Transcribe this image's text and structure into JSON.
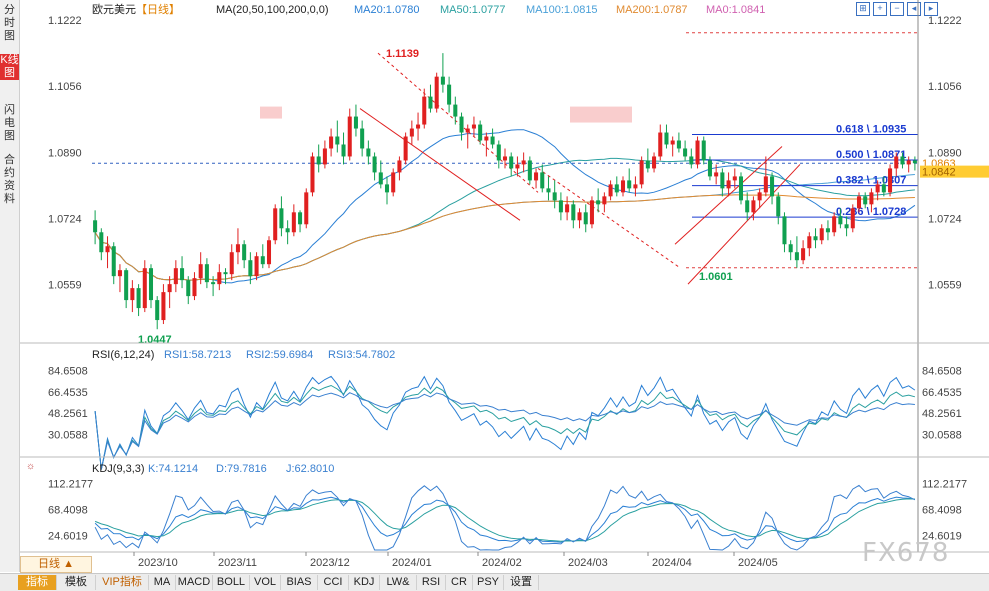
{
  "sidebar": {
    "tabs": [
      {
        "label": "分时图",
        "active": false
      },
      {
        "label": "K线图",
        "active": true
      },
      {
        "label": "闪电图",
        "active": false
      },
      {
        "label": "合约资料",
        "active": false
      }
    ]
  },
  "header": {
    "symbol": "欧元美元",
    "timeframe": "【日线】",
    "ma_params": "MA(20,50,100,200,0,0)",
    "ma_values": [
      {
        "label": "MA20:1.0780",
        "color": "#2a7fd4"
      },
      {
        "label": "MA50:1.0777",
        "color": "#2aa0a0"
      },
      {
        "label": "MA100:1.0815",
        "color": "#4aa0d8"
      },
      {
        "label": "MA200:1.0787",
        "color": "#e08a30"
      },
      {
        "label": "MA0:1.0841",
        "color": "#d060b0"
      }
    ]
  },
  "chart_data": [
    {
      "type": "candlestick",
      "title": "欧元美元 日线",
      "x_labels": [
        "2023/10",
        "2023/11",
        "2023/12",
        "2024/01",
        "2024/02",
        "2024/03",
        "2024/04",
        "2024/05"
      ],
      "y_ticks": [
        "1.1222",
        "1.1056",
        "1.0890",
        "1.0724",
        "1.0559"
      ],
      "ylim": [
        1.042,
        1.1222
      ],
      "current_price": "1.0863",
      "current_price_secondary": "1.0842",
      "annotations": {
        "high": "1.1139",
        "low_2023": "1.0447",
        "low_2024": "1.0601"
      },
      "fib_levels": [
        {
          "label": "0.618 \\ 1.0935",
          "value": 1.0935
        },
        {
          "label": "0.500 \\ 1.0871",
          "value": 1.0871
        },
        {
          "label": "0.382 \\ 1.0807",
          "value": 1.0807
        },
        {
          "label": "0.236 \\ 1.0728",
          "value": 1.0728
        }
      ],
      "candles": [
        [
          1.072,
          1.0745,
          1.066,
          1.069
        ],
        [
          1.069,
          1.07,
          1.062,
          1.064
        ],
        [
          1.064,
          1.068,
          1.06,
          1.0655
        ],
        [
          1.0655,
          1.0665,
          1.056,
          1.058
        ],
        [
          1.058,
          1.061,
          1.054,
          1.0595
        ],
        [
          1.0595,
          1.06,
          1.05,
          1.052
        ],
        [
          1.052,
          1.057,
          1.049,
          1.055
        ],
        [
          1.055,
          1.056,
          1.048,
          1.05
        ],
        [
          1.05,
          1.062,
          1.049,
          1.06
        ],
        [
          1.06,
          1.061,
          1.05,
          1.052
        ],
        [
          1.052,
          1.053,
          1.0447,
          1.047
        ],
        [
          1.047,
          1.056,
          1.046,
          1.054
        ],
        [
          1.054,
          1.058,
          1.05,
          1.056
        ],
        [
          1.056,
          1.062,
          1.054,
          1.06
        ],
        [
          1.06,
          1.063,
          1.055,
          1.057
        ],
        [
          1.057,
          1.058,
          1.051,
          1.053
        ],
        [
          1.053,
          1.059,
          1.052,
          1.0575
        ],
        [
          1.0575,
          1.064,
          1.056,
          1.061
        ],
        [
          1.061,
          1.0625,
          1.055,
          1.0565
        ],
        [
          1.0565,
          1.058,
          1.053,
          1.056
        ],
        [
          1.056,
          1.061,
          1.0545,
          1.059
        ],
        [
          1.059,
          1.06,
          1.056,
          1.0585
        ],
        [
          1.0585,
          1.066,
          1.057,
          1.064
        ],
        [
          1.064,
          1.07,
          1.061,
          1.066
        ],
        [
          1.066,
          1.067,
          1.06,
          1.062
        ],
        [
          1.062,
          1.064,
          1.056,
          1.058
        ],
        [
          1.058,
          1.064,
          1.057,
          1.063
        ],
        [
          1.063,
          1.066,
          1.06,
          1.061
        ],
        [
          1.061,
          1.068,
          1.06,
          1.067
        ],
        [
          1.067,
          1.076,
          1.066,
          1.075
        ],
        [
          1.075,
          1.078,
          1.068,
          1.07
        ],
        [
          1.07,
          1.072,
          1.066,
          1.069
        ],
        [
          1.069,
          1.076,
          1.068,
          1.074
        ],
        [
          1.074,
          1.0745,
          1.069,
          1.071
        ],
        [
          1.071,
          1.08,
          1.07,
          1.079
        ],
        [
          1.079,
          1.089,
          1.078,
          1.088
        ],
        [
          1.088,
          1.091,
          1.084,
          1.086
        ],
        [
          1.086,
          1.092,
          1.085,
          1.09
        ],
        [
          1.09,
          1.095,
          1.088,
          1.093
        ],
        [
          1.093,
          1.097,
          1.089,
          1.091
        ],
        [
          1.091,
          1.094,
          1.086,
          1.088
        ],
        [
          1.088,
          1.1,
          1.087,
          1.098
        ],
        [
          1.098,
          1.101,
          1.093,
          1.095
        ],
        [
          1.095,
          1.097,
          1.088,
          1.09
        ],
        [
          1.09,
          1.092,
          1.086,
          1.088
        ],
        [
          1.088,
          1.089,
          1.082,
          1.084
        ],
        [
          1.084,
          1.087,
          1.08,
          1.081
        ],
        [
          1.081,
          1.083,
          1.076,
          1.079
        ],
        [
          1.079,
          1.085,
          1.078,
          1.084
        ],
        [
          1.084,
          1.088,
          1.082,
          1.087
        ],
        [
          1.087,
          1.094,
          1.086,
          1.093
        ],
        [
          1.093,
          1.097,
          1.091,
          1.095
        ],
        [
          1.095,
          1.099,
          1.092,
          1.096
        ],
        [
          1.096,
          1.105,
          1.095,
          1.103
        ],
        [
          1.103,
          1.106,
          1.099,
          1.1
        ],
        [
          1.1,
          1.109,
          1.099,
          1.108
        ],
        [
          1.108,
          1.1139,
          1.104,
          1.106
        ],
        [
          1.106,
          1.108,
          1.099,
          1.101
        ],
        [
          1.101,
          1.103,
          1.096,
          1.098
        ],
        [
          1.098,
          1.099,
          1.092,
          1.094
        ],
        [
          1.094,
          1.096,
          1.09,
          1.095
        ],
        [
          1.095,
          1.098,
          1.093,
          1.096
        ],
        [
          1.096,
          1.097,
          1.091,
          1.092
        ],
        [
          1.092,
          1.094,
          1.088,
          1.093
        ],
        [
          1.093,
          1.095,
          1.09,
          1.091
        ],
        [
          1.091,
          1.092,
          1.085,
          1.087
        ],
        [
          1.087,
          1.09,
          1.085,
          1.088
        ],
        [
          1.088,
          1.089,
          1.083,
          1.085
        ],
        [
          1.085,
          1.088,
          1.083,
          1.086
        ],
        [
          1.086,
          1.089,
          1.084,
          1.087
        ],
        [
          1.087,
          1.088,
          1.081,
          1.082
        ],
        [
          1.082,
          1.085,
          1.08,
          1.084
        ],
        [
          1.084,
          1.086,
          1.079,
          1.08
        ],
        [
          1.08,
          1.083,
          1.077,
          1.079
        ],
        [
          1.079,
          1.082,
          1.075,
          1.077
        ],
        [
          1.077,
          1.079,
          1.072,
          1.074
        ],
        [
          1.074,
          1.078,
          1.072,
          1.076
        ],
        [
          1.076,
          1.077,
          1.07,
          1.072
        ],
        [
          1.072,
          1.075,
          1.07,
          1.074
        ],
        [
          1.074,
          1.076,
          1.069,
          1.071
        ],
        [
          1.071,
          1.078,
          1.07,
          1.077
        ],
        [
          1.077,
          1.08,
          1.074,
          1.076
        ],
        [
          1.076,
          1.079,
          1.074,
          1.078
        ],
        [
          1.078,
          1.082,
          1.077,
          1.081
        ],
        [
          1.081,
          1.083,
          1.078,
          1.079
        ],
        [
          1.079,
          1.083,
          1.078,
          1.082
        ],
        [
          1.082,
          1.085,
          1.079,
          1.08
        ],
        [
          1.08,
          1.083,
          1.078,
          1.081
        ],
        [
          1.081,
          1.088,
          1.08,
          1.087
        ],
        [
          1.087,
          1.09,
          1.084,
          1.085
        ],
        [
          1.085,
          1.089,
          1.084,
          1.088
        ],
        [
          1.088,
          1.096,
          1.087,
          1.094
        ],
        [
          1.094,
          1.096,
          1.09,
          1.091
        ],
        [
          1.091,
          1.093,
          1.088,
          1.092
        ],
        [
          1.092,
          1.094,
          1.089,
          1.09
        ],
        [
          1.09,
          1.092,
          1.087,
          1.088
        ],
        [
          1.088,
          1.09,
          1.085,
          1.086
        ],
        [
          1.086,
          1.093,
          1.085,
          1.092
        ],
        [
          1.092,
          1.093,
          1.086,
          1.087
        ],
        [
          1.087,
          1.088,
          1.082,
          1.083
        ],
        [
          1.083,
          1.086,
          1.081,
          1.084
        ],
        [
          1.084,
          1.085,
          1.078,
          1.08
        ],
        [
          1.08,
          1.084,
          1.078,
          1.082
        ],
        [
          1.082,
          1.085,
          1.08,
          1.083
        ],
        [
          1.083,
          1.084,
          1.076,
          1.077
        ],
        [
          1.077,
          1.079,
          1.072,
          1.074
        ],
        [
          1.074,
          1.078,
          1.072,
          1.077
        ],
        [
          1.077,
          1.08,
          1.075,
          1.079
        ],
        [
          1.079,
          1.088,
          1.078,
          1.083
        ],
        [
          1.083,
          1.084,
          1.076,
          1.078
        ],
        [
          1.078,
          1.079,
          1.071,
          1.073
        ],
        [
          1.073,
          1.074,
          1.064,
          1.066
        ],
        [
          1.066,
          1.067,
          1.062,
          1.064
        ],
        [
          1.064,
          1.068,
          1.0601,
          1.062
        ],
        [
          1.062,
          1.067,
          1.061,
          1.065
        ],
        [
          1.065,
          1.069,
          1.063,
          1.068
        ],
        [
          1.068,
          1.07,
          1.065,
          1.067
        ],
        [
          1.067,
          1.071,
          1.066,
          1.07
        ],
        [
          1.07,
          1.072,
          1.067,
          1.069
        ],
        [
          1.069,
          1.074,
          1.068,
          1.073
        ],
        [
          1.073,
          1.075,
          1.07,
          1.071
        ],
        [
          1.071,
          1.073,
          1.068,
          1.07
        ],
        [
          1.07,
          1.076,
          1.069,
          1.075
        ],
        [
          1.075,
          1.079,
          1.074,
          1.078
        ],
        [
          1.078,
          1.079,
          1.075,
          1.076
        ],
        [
          1.076,
          1.08,
          1.074,
          1.079
        ],
        [
          1.079,
          1.082,
          1.077,
          1.081
        ],
        [
          1.081,
          1.083,
          1.078,
          1.079
        ],
        [
          1.079,
          1.086,
          1.078,
          1.085
        ],
        [
          1.085,
          1.089,
          1.083,
          1.088
        ],
        [
          1.088,
          1.089,
          1.085,
          1.086
        ],
        [
          1.086,
          1.088,
          1.084,
          1.087
        ],
        [
          1.087,
          1.088,
          1.0845,
          1.0863
        ]
      ]
    },
    {
      "type": "line",
      "title": "RSI(6,12,24)",
      "legend": [
        "RSI1:58.7213",
        "RSI2:59.6984",
        "RSI3:54.7802"
      ],
      "y_ticks": [
        "84.6508",
        "66.4535",
        "48.2561",
        "30.0588"
      ],
      "ylim": [
        15,
        92
      ]
    },
    {
      "type": "line",
      "title": "KDJ(9,3,3)",
      "legend": [
        "K:74.1214",
        "D:79.7816",
        "J:62.8010"
      ],
      "y_ticks": [
        "112.2177",
        "68.4098",
        "24.6019"
      ],
      "ylim": [
        0,
        125
      ]
    }
  ],
  "bottom": {
    "timeframe_label": "日线 ▲",
    "tabs": [
      "指标",
      "模板",
      "VIP指标",
      "MA",
      "MACD",
      "BOLL",
      "VOL",
      "BIAS",
      "CCI",
      "KDJ",
      "LW&",
      "RSI",
      "CR",
      "PSY",
      "设置"
    ],
    "watermark": "FX678"
  },
  "colors": {
    "up": "#e02020",
    "down": "#10a050",
    "axis": "#444444",
    "grid": "#e8e8e8",
    "accent": "#1a3ad0"
  }
}
